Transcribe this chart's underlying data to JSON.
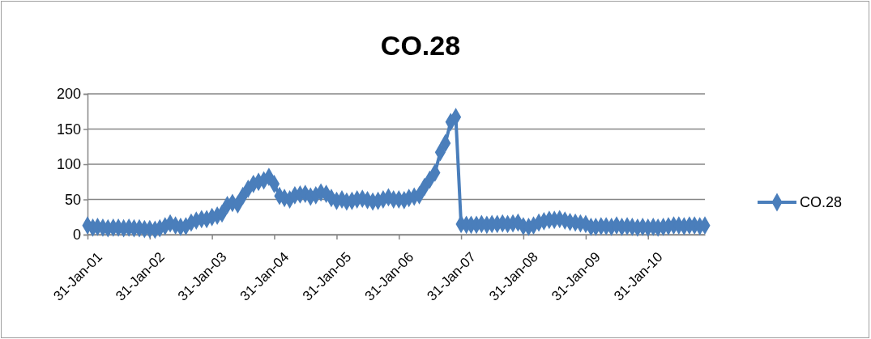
{
  "chart_data": {
    "type": "line",
    "title": "CO.28",
    "x": [
      "2001-01",
      "2001-02",
      "2001-03",
      "2001-04",
      "2001-05",
      "2001-06",
      "2001-07",
      "2001-08",
      "2001-09",
      "2001-10",
      "2001-11",
      "2001-12",
      "2002-01",
      "2002-02",
      "2002-03",
      "2002-04",
      "2002-05",
      "2002-06",
      "2002-07",
      "2002-08",
      "2002-09",
      "2002-10",
      "2002-11",
      "2002-12",
      "2003-01",
      "2003-02",
      "2003-03",
      "2003-04",
      "2003-05",
      "2003-06",
      "2003-07",
      "2003-08",
      "2003-09",
      "2003-10",
      "2003-11",
      "2003-12",
      "2004-01",
      "2004-02",
      "2004-03",
      "2004-04",
      "2004-05",
      "2004-06",
      "2004-07",
      "2004-08",
      "2004-09",
      "2004-10",
      "2004-11",
      "2004-12",
      "2005-01",
      "2005-02",
      "2005-03",
      "2005-04",
      "2005-05",
      "2005-06",
      "2005-07",
      "2005-08",
      "2005-09",
      "2005-10",
      "2005-11",
      "2005-12",
      "2006-01",
      "2006-02",
      "2006-03",
      "2006-04",
      "2006-05",
      "2006-06",
      "2006-07",
      "2006-08",
      "2006-09",
      "2006-10",
      "2006-11",
      "2006-12",
      "2007-01",
      "2007-02",
      "2007-03",
      "2007-04",
      "2007-05",
      "2007-06",
      "2007-07",
      "2007-08",
      "2007-09",
      "2007-10",
      "2007-11",
      "2007-12",
      "2008-01",
      "2008-02",
      "2008-03",
      "2008-04",
      "2008-05",
      "2008-06",
      "2008-07",
      "2008-08",
      "2008-09",
      "2008-10",
      "2008-11",
      "2008-12",
      "2009-01",
      "2009-02",
      "2009-03",
      "2009-04",
      "2009-05",
      "2009-06",
      "2009-07",
      "2009-08",
      "2009-09",
      "2009-10",
      "2009-11",
      "2009-12",
      "2010-01",
      "2010-02",
      "2010-03",
      "2010-04",
      "2010-05",
      "2010-06",
      "2010-07",
      "2010-08",
      "2010-09",
      "2010-10",
      "2010-11",
      "2010-12"
    ],
    "series": [
      {
        "name": "CO.28",
        "color": "#4a7ebb",
        "values": [
          13,
          10,
          11,
          10,
          9,
          10,
          10,
          9,
          10,
          9,
          9,
          8,
          8,
          7,
          9,
          12,
          16,
          13,
          11,
          12,
          17,
          20,
          22,
          22,
          25,
          27,
          30,
          42,
          45,
          43,
          55,
          65,
          72,
          75,
          77,
          82,
          72,
          55,
          52,
          50,
          56,
          57,
          58,
          54,
          56,
          60,
          58,
          52,
          48,
          50,
          47,
          48,
          50,
          51,
          49,
          47,
          48,
          50,
          53,
          50,
          50,
          49,
          52,
          54,
          56,
          68,
          78,
          88,
          117,
          130,
          160,
          167,
          15,
          14,
          14,
          14,
          15,
          14,
          15,
          15,
          16,
          15,
          16,
          17,
          12,
          11,
          13,
          17,
          19,
          21,
          21,
          22,
          20,
          18,
          17,
          16,
          15,
          11,
          11,
          12,
          12,
          11,
          13,
          11,
          12,
          11,
          10,
          11,
          10,
          11,
          10,
          11,
          12,
          13,
          13,
          12,
          13,
          13,
          12,
          13
        ]
      }
    ],
    "xlim": [
      "2001-01",
      "2010-12"
    ],
    "xticks": [
      {
        "value": "2001-01",
        "label": "31-Jan-01"
      },
      {
        "value": "2002-01",
        "label": "31-Jan-02"
      },
      {
        "value": "2003-01",
        "label": "31-Jan-03"
      },
      {
        "value": "2004-01",
        "label": "31-Jan-04"
      },
      {
        "value": "2005-01",
        "label": "31-Jan-05"
      },
      {
        "value": "2006-01",
        "label": "31-Jan-06"
      },
      {
        "value": "2007-01",
        "label": "31-Jan-07"
      },
      {
        "value": "2008-01",
        "label": "31-Jan-08"
      },
      {
        "value": "2009-01",
        "label": "31-Jan-09"
      },
      {
        "value": "2010-01",
        "label": "31-Jan-10"
      }
    ],
    "ylim": [
      0,
      200
    ],
    "yticks": [
      0,
      50,
      100,
      150,
      200
    ],
    "grid": "y",
    "legend": "right",
    "marker": "diamond",
    "line_style": "solid"
  }
}
